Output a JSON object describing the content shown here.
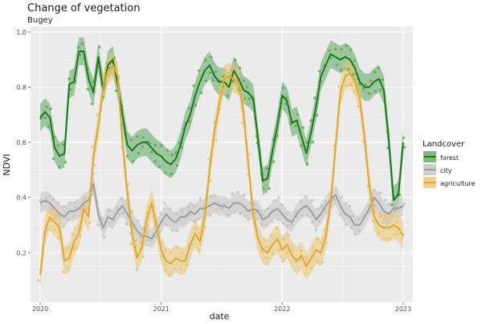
{
  "chart_data": {
    "type": "scatter",
    "title": "Change of vegetation",
    "subtitle": "Bugey",
    "xlabel": "date",
    "ylabel": "NDVI",
    "xlim": [
      2019.92,
      2023.08
    ],
    "ylim": [
      0.02,
      1.02
    ],
    "x_ticks": [
      {
        "label": "2020",
        "value": 2020.0
      },
      {
        "label": "2021",
        "value": 2021.0
      },
      {
        "label": "2022",
        "value": 2022.0
      },
      {
        "label": "2023",
        "value": 2023.0
      }
    ],
    "y_ticks": [
      {
        "label": "0.2",
        "value": 0.2
      },
      {
        "label": "0.4",
        "value": 0.4
      },
      {
        "label": "0.6",
        "value": 0.6
      },
      {
        "label": "0.8",
        "value": 0.8
      },
      {
        "label": "1.0",
        "value": 1.0
      }
    ],
    "legend": {
      "title": "Landcover",
      "position": "right",
      "entries": [
        "forest",
        "city",
        "agriculture"
      ]
    },
    "series": [
      {
        "name": "forest",
        "color": "#1a7a1a",
        "band_color": "#5fa85f",
        "band_width": 0.05,
        "x": [
          2020.0,
          2020.04,
          2020.08,
          2020.12,
          2020.16,
          2020.2,
          2020.24,
          2020.28,
          2020.32,
          2020.36,
          2020.4,
          2020.44,
          2020.48,
          2020.52,
          2020.56,
          2020.6,
          2020.64,
          2020.68,
          2020.72,
          2020.76,
          2020.8,
          2020.84,
          2020.88,
          2020.92,
          2020.96,
          2021.0,
          2021.04,
          2021.08,
          2021.12,
          2021.16,
          2021.2,
          2021.24,
          2021.28,
          2021.32,
          2021.36,
          2021.4,
          2021.44,
          2021.48,
          2021.52,
          2021.56,
          2021.6,
          2021.64,
          2021.68,
          2021.72,
          2021.76,
          2021.8,
          2021.84,
          2021.88,
          2021.92,
          2021.96,
          2022.0,
          2022.04,
          2022.08,
          2022.12,
          2022.16,
          2022.2,
          2022.24,
          2022.28,
          2022.32,
          2022.36,
          2022.4,
          2022.44,
          2022.48,
          2022.52,
          2022.56,
          2022.6,
          2022.64,
          2022.68,
          2022.72,
          2022.76,
          2022.8,
          2022.84,
          2022.88,
          2022.92,
          2022.96,
          2023.0
        ],
        "values": [
          0.69,
          0.71,
          0.69,
          0.58,
          0.55,
          0.56,
          0.81,
          0.82,
          0.93,
          0.93,
          0.83,
          0.78,
          0.91,
          0.79,
          0.88,
          0.9,
          0.81,
          0.7,
          0.59,
          0.57,
          0.59,
          0.6,
          0.6,
          0.58,
          0.56,
          0.55,
          0.53,
          0.52,
          0.54,
          0.59,
          0.66,
          0.7,
          0.77,
          0.82,
          0.86,
          0.88,
          0.84,
          0.82,
          0.82,
          0.8,
          0.86,
          0.83,
          0.79,
          0.78,
          0.76,
          0.61,
          0.46,
          0.47,
          0.57,
          0.66,
          0.77,
          0.75,
          0.67,
          0.68,
          0.62,
          0.56,
          0.64,
          0.73,
          0.84,
          0.88,
          0.92,
          0.91,
          0.9,
          0.91,
          0.9,
          0.87,
          0.82,
          0.8,
          0.8,
          0.82,
          0.83,
          0.79,
          0.61,
          0.39,
          0.41,
          0.6
        ]
      },
      {
        "name": "city",
        "color": "#9e9e9e",
        "band_color": "#c2c2c2",
        "band_width": 0.035,
        "x": [
          2020.0,
          2020.04,
          2020.08,
          2020.12,
          2020.16,
          2020.2,
          2020.24,
          2020.28,
          2020.32,
          2020.36,
          2020.4,
          2020.44,
          2020.48,
          2020.52,
          2020.56,
          2020.6,
          2020.64,
          2020.68,
          2020.72,
          2020.76,
          2020.8,
          2020.84,
          2020.88,
          2020.92,
          2020.96,
          2021.0,
          2021.04,
          2021.08,
          2021.12,
          2021.16,
          2021.2,
          2021.24,
          2021.28,
          2021.32,
          2021.36,
          2021.4,
          2021.44,
          2021.48,
          2021.52,
          2021.56,
          2021.6,
          2021.64,
          2021.68,
          2021.72,
          2021.76,
          2021.8,
          2021.84,
          2021.88,
          2021.92,
          2021.96,
          2022.0,
          2022.04,
          2022.08,
          2022.12,
          2022.16,
          2022.2,
          2022.24,
          2022.28,
          2022.32,
          2022.36,
          2022.4,
          2022.44,
          2022.48,
          2022.52,
          2022.56,
          2022.6,
          2022.64,
          2022.68,
          2022.72,
          2022.76,
          2022.8,
          2022.84,
          2022.88,
          2022.92,
          2022.96,
          2023.0
        ],
        "values": [
          0.38,
          0.39,
          0.38,
          0.36,
          0.34,
          0.33,
          0.35,
          0.35,
          0.36,
          0.38,
          0.39,
          0.45,
          0.34,
          0.29,
          0.33,
          0.32,
          0.35,
          0.37,
          0.34,
          0.31,
          0.28,
          0.26,
          0.26,
          0.25,
          0.28,
          0.31,
          0.34,
          0.32,
          0.31,
          0.33,
          0.33,
          0.35,
          0.34,
          0.36,
          0.36,
          0.37,
          0.38,
          0.37,
          0.37,
          0.36,
          0.38,
          0.38,
          0.37,
          0.35,
          0.36,
          0.35,
          0.32,
          0.33,
          0.35,
          0.36,
          0.34,
          0.32,
          0.31,
          0.34,
          0.36,
          0.37,
          0.35,
          0.32,
          0.34,
          0.37,
          0.39,
          0.41,
          0.37,
          0.34,
          0.33,
          0.3,
          0.3,
          0.33,
          0.36,
          0.4,
          0.38,
          0.35,
          0.34,
          0.36,
          0.36,
          0.37
        ]
      },
      {
        "name": "agriculture",
        "color": "#e0a82e",
        "band_color": "#ebc46f",
        "band_width": 0.05,
        "x": [
          2020.0,
          2020.04,
          2020.08,
          2020.12,
          2020.16,
          2020.2,
          2020.24,
          2020.28,
          2020.32,
          2020.36,
          2020.4,
          2020.44,
          2020.48,
          2020.52,
          2020.56,
          2020.6,
          2020.64,
          2020.68,
          2020.72,
          2020.76,
          2020.8,
          2020.84,
          2020.88,
          2020.92,
          2020.96,
          2021.0,
          2021.04,
          2021.08,
          2021.12,
          2021.16,
          2021.2,
          2021.24,
          2021.28,
          2021.32,
          2021.36,
          2021.4,
          2021.44,
          2021.48,
          2021.52,
          2021.56,
          2021.6,
          2021.64,
          2021.68,
          2021.72,
          2021.76,
          2021.8,
          2021.84,
          2021.88,
          2021.92,
          2021.96,
          2022.0,
          2022.04,
          2022.08,
          2022.12,
          2022.16,
          2022.2,
          2022.24,
          2022.28,
          2022.32,
          2022.36,
          2022.4,
          2022.44,
          2022.48,
          2022.52,
          2022.56,
          2022.6,
          2022.64,
          2022.68,
          2022.72,
          2022.76,
          2022.8,
          2022.84,
          2022.88,
          2022.92,
          2022.96,
          2023.0
        ],
        "values": [
          0.12,
          0.28,
          0.33,
          0.31,
          0.29,
          0.17,
          0.18,
          0.24,
          0.27,
          0.36,
          0.33,
          0.55,
          0.66,
          0.8,
          0.86,
          0.88,
          0.84,
          0.6,
          0.42,
          0.27,
          0.18,
          0.22,
          0.32,
          0.38,
          0.3,
          0.21,
          0.17,
          0.16,
          0.18,
          0.17,
          0.17,
          0.23,
          0.27,
          0.24,
          0.33,
          0.5,
          0.64,
          0.74,
          0.83,
          0.84,
          0.83,
          0.82,
          0.71,
          0.52,
          0.34,
          0.25,
          0.21,
          0.2,
          0.23,
          0.25,
          0.21,
          0.23,
          0.19,
          0.17,
          0.19,
          0.15,
          0.18,
          0.21,
          0.2,
          0.26,
          0.38,
          0.58,
          0.78,
          0.84,
          0.85,
          0.82,
          0.76,
          0.62,
          0.44,
          0.33,
          0.3,
          0.29,
          0.29,
          0.3,
          0.29,
          0.26
        ]
      }
    ]
  }
}
